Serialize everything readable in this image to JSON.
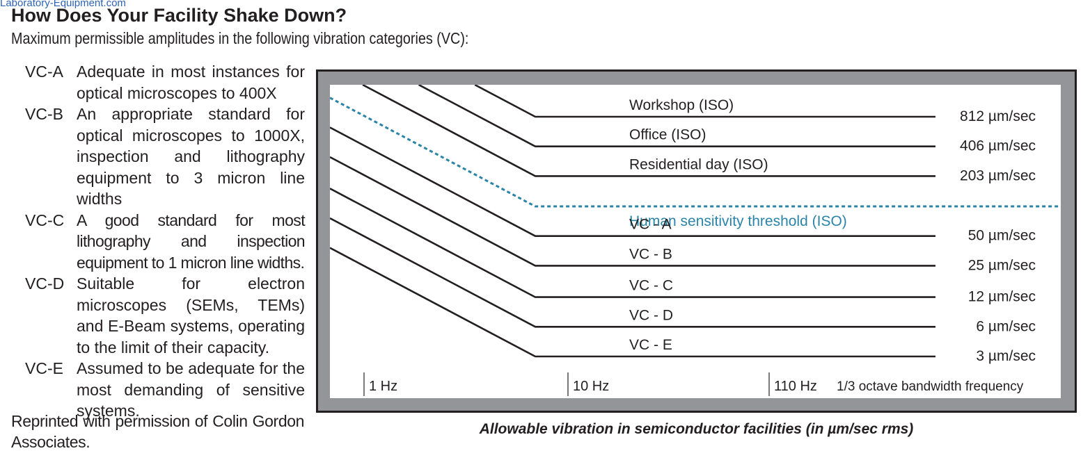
{
  "watermark": "Laboratory-Equipment.com",
  "title": "How Does Your Facility Shake Down?",
  "subtitle": "Maximum permissible amplitudes in the following vibration categories (VC):",
  "categories": [
    {
      "code": "VC-A",
      "description": "Adequate in most instances for optical microscopes to 400X"
    },
    {
      "code": "VC-B",
      "description": "An appropriate standard for optical microscopes to 1000X, inspection and lithography equipment to 3 micron line widths"
    },
    {
      "code": "VC-C",
      "description": "A good standard for most lithography and inspection equipment to 1 micron line widths."
    },
    {
      "code": "VC-D",
      "description": "Suitable for electron microscopes (SEMs, TEMs) and E-Beam systems, operating to the limit of their capacity."
    },
    {
      "code": "VC-E",
      "description": "Assumed to be adequate for the most demanding of sensitive systems."
    }
  ],
  "credit": "Reprinted with permission of Colin Gordon Associates.",
  "chart_data": {
    "type": "line",
    "title": "Allowable vibration in semiconductor facilities (in µm/sec rms)",
    "xlabel": "1/3 octave bandwidth frequency",
    "x_ticks": [
      "1 Hz",
      "10 Hz",
      "110 Hz"
    ],
    "x_scale": "log",
    "series": [
      {
        "name": "Workshop (ISO)",
        "value_label": "812 µm/sec",
        "value": 812,
        "style": "solid"
      },
      {
        "name": "Office (ISO)",
        "value_label": "406 µm/sec",
        "value": 406,
        "style": "solid"
      },
      {
        "name": "Residential day (ISO)",
        "value_label": "203 µm/sec",
        "value": 203,
        "style": "solid"
      },
      {
        "name": "Human sensitivity threshold (ISO)",
        "value_label": "",
        "value": 100,
        "style": "dashed"
      },
      {
        "name": "VC - A",
        "value_label": "50 µm/sec",
        "value": 50,
        "style": "solid"
      },
      {
        "name": "VC - B",
        "value_label": "25 µm/sec",
        "value": 25,
        "style": "solid"
      },
      {
        "name": "VC - C",
        "value_label": "12 µm/sec",
        "value": 12,
        "style": "solid"
      },
      {
        "name": "VC - D",
        "value_label": "6 µm/sec",
        "value": 6,
        "style": "solid"
      },
      {
        "name": "VC - E",
        "value_label": "3 µm/sec",
        "value": 3,
        "style": "solid"
      }
    ],
    "colors": {
      "frame": "#939598",
      "line": "#231f20",
      "threshold": "#2a84a8"
    }
  }
}
